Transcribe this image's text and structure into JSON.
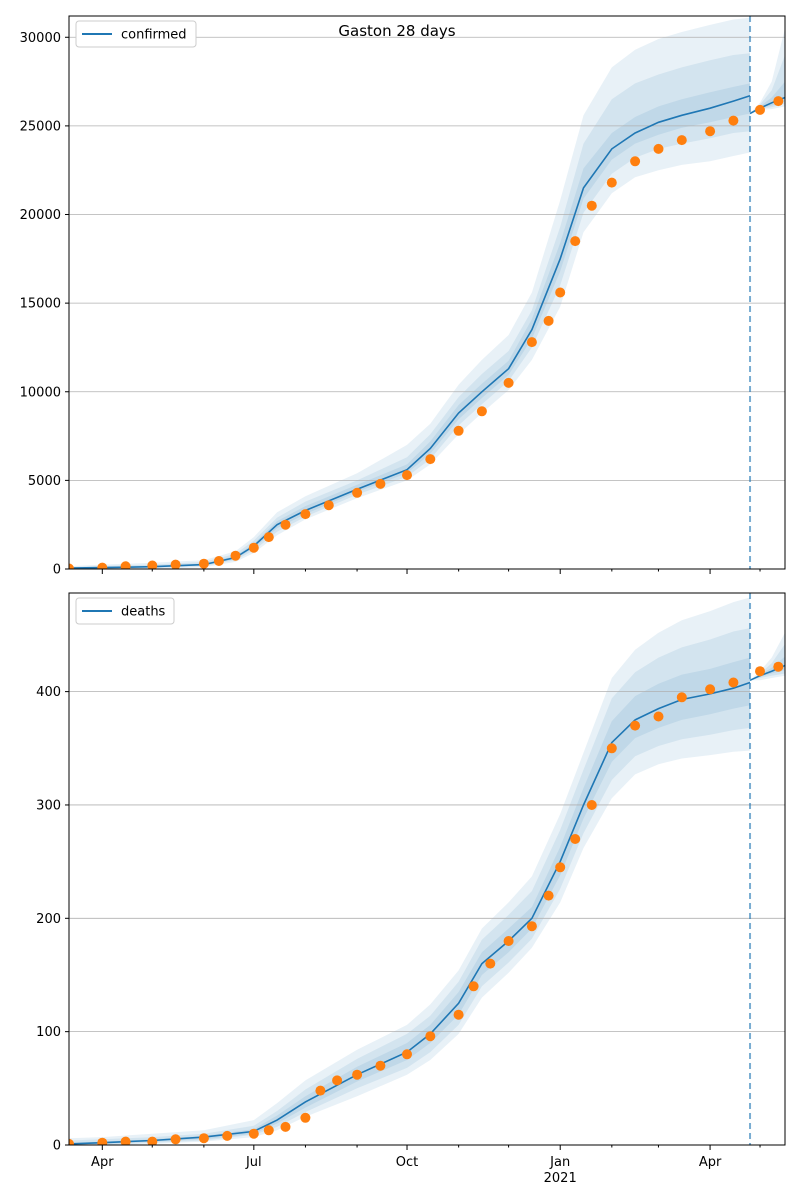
{
  "figure": {
    "title": "Gaston 28 days"
  },
  "x_axis": {
    "tick_labels": [
      "Apr",
      "Jul",
      "Oct",
      "Jan",
      "Apr"
    ],
    "year_label": "2021"
  },
  "colors": {
    "line": "#1f77b4",
    "observed": "#ff7f0e",
    "band": "#1f77b4",
    "grid": "#b0b0b0",
    "forecast_divider": "#1f77b4"
  },
  "chart_data": [
    {
      "type": "line",
      "legend": "confirmed",
      "legend_position": "top-left",
      "grid": "horizontal",
      "xlim": [
        "2020-03-12",
        "2021-05-16"
      ],
      "ylim": [
        0,
        31200
      ],
      "yticks": [
        0,
        5000,
        10000,
        15000,
        20000,
        25000,
        30000
      ],
      "ytick_labels": [
        "0",
        "5000",
        "10000",
        "15000",
        "20000",
        "25000",
        "30000"
      ],
      "forecast_start": "2021-04-25",
      "fit": {
        "x": [
          "2020-03-12",
          "2020-04-01",
          "2020-05-01",
          "2020-06-01",
          "2020-06-20",
          "2020-07-01",
          "2020-07-15",
          "2020-08-01",
          "2020-09-01",
          "2020-10-01",
          "2020-10-15",
          "2020-11-01",
          "2020-11-15",
          "2020-12-01",
          "2020-12-15",
          "2021-01-01",
          "2021-01-15",
          "2021-02-01",
          "2021-02-15",
          "2021-03-01",
          "2021-03-15",
          "2021-04-01",
          "2021-04-15",
          "2021-04-25"
        ],
        "y": [
          50,
          80,
          130,
          250,
          650,
          1300,
          2500,
          3300,
          4500,
          5600,
          6800,
          8800,
          10000,
          11300,
          13500,
          17500,
          21500,
          23700,
          24600,
          25200,
          25600,
          26000,
          26400,
          26700
        ]
      },
      "forecast": {
        "x": [
          "2021-04-25",
          "2021-05-01",
          "2021-05-08",
          "2021-05-16"
        ],
        "y": [
          25700,
          26000,
          26300,
          26600
        ]
      },
      "bands": [
        {
          "level": "outer",
          "lower": [
            0,
            0,
            0,
            100,
            400,
            900,
            1900,
            2800,
            4000,
            5000,
            5900,
            7600,
            8800,
            10100,
            11800,
            14800,
            19000,
            21200,
            22100,
            22500,
            22800,
            23000,
            23300,
            23500
          ],
          "upper": [
            150,
            250,
            350,
            500,
            1000,
            1800,
            3200,
            4100,
            5400,
            7000,
            8200,
            10400,
            11800,
            13200,
            15600,
            20800,
            25600,
            28300,
            29300,
            29900,
            30300,
            30700,
            31000,
            31100
          ]
        },
        {
          "level": "middle",
          "lower": [
            10,
            30,
            60,
            150,
            500,
            1050,
            2100,
            2950,
            4200,
            5200,
            6200,
            8100,
            9300,
            10600,
            12500,
            16000,
            20100,
            22300,
            23200,
            23700,
            24000,
            24300,
            24600,
            24700
          ],
          "upper": [
            100,
            170,
            250,
            400,
            850,
            1600,
            2900,
            3800,
            5000,
            6300,
            7600,
            9700,
            11000,
            12300,
            14600,
            19300,
            24000,
            26500,
            27400,
            27900,
            28300,
            28700,
            29000,
            29100
          ]
        },
        {
          "level": "inner",
          "lower": [
            30,
            60,
            100,
            200,
            570,
            1180,
            2300,
            3100,
            4350,
            5400,
            6500,
            8450,
            9650,
            10950,
            13000,
            16800,
            20900,
            23100,
            24000,
            24500,
            24900,
            25200,
            25500,
            25700
          ],
          "upper": [
            70,
            110,
            170,
            310,
            740,
            1430,
            2700,
            3550,
            4750,
            5900,
            7200,
            9250,
            10450,
            11750,
            14100,
            18400,
            22600,
            24600,
            25500,
            26100,
            26500,
            26900,
            27200,
            27400
          ]
        }
      ],
      "forecast_bands": [
        {
          "level": "outer",
          "lower": [
            25700,
            25900,
            25950,
            26100
          ],
          "upper": [
            25700,
            26300,
            27500,
            30500
          ]
        },
        {
          "level": "middle",
          "lower": [
            25700,
            25950,
            26050,
            26250
          ],
          "upper": [
            25700,
            26200,
            27000,
            29000
          ]
        },
        {
          "level": "inner",
          "lower": [
            25700,
            25980,
            26150,
            26400
          ],
          "upper": [
            25700,
            26100,
            26600,
            27500
          ]
        }
      ],
      "observed": {
        "x": [
          "2020-03-12",
          "2020-04-01",
          "2020-04-15",
          "2020-05-01",
          "2020-05-15",
          "2020-06-01",
          "2020-06-10",
          "2020-06-20",
          "2020-07-01",
          "2020-07-10",
          "2020-07-20",
          "2020-08-01",
          "2020-08-15",
          "2020-09-01",
          "2020-09-15",
          "2020-10-01",
          "2020-10-15",
          "2020-11-01",
          "2020-11-15",
          "2020-12-01",
          "2020-12-15",
          "2020-12-25",
          "2021-01-01",
          "2021-01-10",
          "2021-01-20",
          "2021-02-01",
          "2021-02-15",
          "2021-03-01",
          "2021-03-15",
          "2021-04-01",
          "2021-04-15",
          "2021-05-01",
          "2021-05-12"
        ],
        "y": [
          30,
          80,
          150,
          200,
          250,
          300,
          450,
          750,
          1200,
          1800,
          2500,
          3100,
          3600,
          4300,
          4800,
          5300,
          6200,
          7800,
          8900,
          10500,
          12800,
          14000,
          15600,
          18500,
          20500,
          21800,
          23000,
          23700,
          24200,
          24700,
          25300,
          25900,
          26400
        ]
      }
    },
    {
      "type": "line",
      "legend": "deaths",
      "legend_position": "top-left",
      "grid": "horizontal",
      "xlim": [
        "2020-03-12",
        "2021-05-16"
      ],
      "ylim": [
        0,
        487
      ],
      "yticks": [
        0,
        100,
        200,
        300,
        400
      ],
      "ytick_labels": [
        "0",
        "100",
        "200",
        "300",
        "400"
      ],
      "forecast_start": "2021-04-25",
      "fit": {
        "x": [
          "2020-03-12",
          "2020-04-01",
          "2020-05-01",
          "2020-06-01",
          "2020-07-01",
          "2020-07-15",
          "2020-08-01",
          "2020-09-01",
          "2020-10-01",
          "2020-10-15",
          "2020-11-01",
          "2020-11-15",
          "2020-12-01",
          "2020-12-15",
          "2021-01-01",
          "2021-01-15",
          "2021-02-01",
          "2021-02-15",
          "2021-03-01",
          "2021-03-15",
          "2021-04-01",
          "2021-04-15",
          "2021-04-25"
        ],
        "y": [
          1,
          2,
          4,
          7,
          12,
          22,
          38,
          62,
          82,
          98,
          125,
          160,
          180,
          200,
          250,
          300,
          355,
          375,
          385,
          393,
          398,
          403,
          408
        ]
      },
      "forecast": {
        "x": [
          "2021-04-25",
          "2021-05-01",
          "2021-05-08",
          "2021-05-16"
        ],
        "y": [
          410,
          414,
          418,
          423
        ]
      },
      "bands": [
        {
          "level": "outer",
          "lower": [
            0,
            0,
            1,
            3,
            7,
            13,
            25,
            43,
            62,
            75,
            98,
            130,
            152,
            174,
            214,
            262,
            306,
            327,
            336,
            341,
            344,
            347,
            348
          ],
          "upper": [
            6,
            7,
            10,
            13,
            22,
            37,
            57,
            84,
            106,
            124,
            154,
            191,
            214,
            237,
            292,
            346,
            412,
            437,
            452,
            463,
            471,
            479,
            483
          ]
        },
        {
          "level": "middle",
          "lower": [
            0,
            0,
            2,
            4,
            9,
            16,
            29,
            50,
            68,
            82,
            106,
            140,
            161,
            182,
            226,
            275,
            322,
            343,
            352,
            358,
            362,
            366,
            368
          ],
          "upper": [
            4,
            5,
            7,
            10,
            17,
            30,
            49,
            76,
            98,
            114,
            144,
            181,
            203,
            224,
            278,
            331,
            394,
            417,
            430,
            439,
            446,
            453,
            456
          ]
        },
        {
          "level": "inner",
          "lower": [
            0,
            1,
            3,
            5,
            10,
            19,
            33,
            56,
            75,
            90,
            115,
            150,
            170,
            191,
            238,
            288,
            338,
            359,
            368,
            375,
            380,
            385,
            388
          ],
          "upper": [
            2,
            3,
            5,
            8,
            14,
            26,
            43,
            69,
            90,
            106,
            135,
            170,
            191,
            210,
            263,
            315,
            374,
            396,
            407,
            415,
            420,
            426,
            430
          ]
        }
      ],
      "forecast_bands": [
        {
          "level": "outer",
          "lower": [
            410,
            410,
            412,
            414
          ],
          "upper": [
            410,
            418,
            430,
            452
          ]
        },
        {
          "level": "middle",
          "lower": [
            410,
            412,
            414,
            416
          ],
          "upper": [
            410,
            416,
            425,
            442
          ]
        },
        {
          "level": "inner",
          "lower": [
            410,
            413,
            416,
            419
          ],
          "upper": [
            410,
            415,
            421,
            431
          ]
        }
      ],
      "observed": {
        "x": [
          "2020-03-12",
          "2020-04-01",
          "2020-04-15",
          "2020-05-01",
          "2020-05-15",
          "2020-06-01",
          "2020-06-15",
          "2020-07-01",
          "2020-07-10",
          "2020-07-20",
          "2020-08-01",
          "2020-08-10",
          "2020-08-20",
          "2020-09-01",
          "2020-09-15",
          "2020-10-01",
          "2020-10-15",
          "2020-11-01",
          "2020-11-10",
          "2020-11-20",
          "2020-12-01",
          "2020-12-15",
          "2020-12-25",
          "2021-01-01",
          "2021-01-10",
          "2021-01-20",
          "2021-02-01",
          "2021-02-15",
          "2021-03-01",
          "2021-03-15",
          "2021-04-01",
          "2021-04-15",
          "2021-05-01",
          "2021-05-12"
        ],
        "y": [
          1,
          2,
          3,
          3,
          5,
          6,
          8,
          10,
          13,
          16,
          24,
          48,
          57,
          62,
          70,
          80,
          96,
          115,
          140,
          160,
          180,
          193,
          220,
          245,
          270,
          300,
          350,
          370,
          378,
          395,
          402,
          408,
          418,
          422
        ]
      }
    }
  ]
}
